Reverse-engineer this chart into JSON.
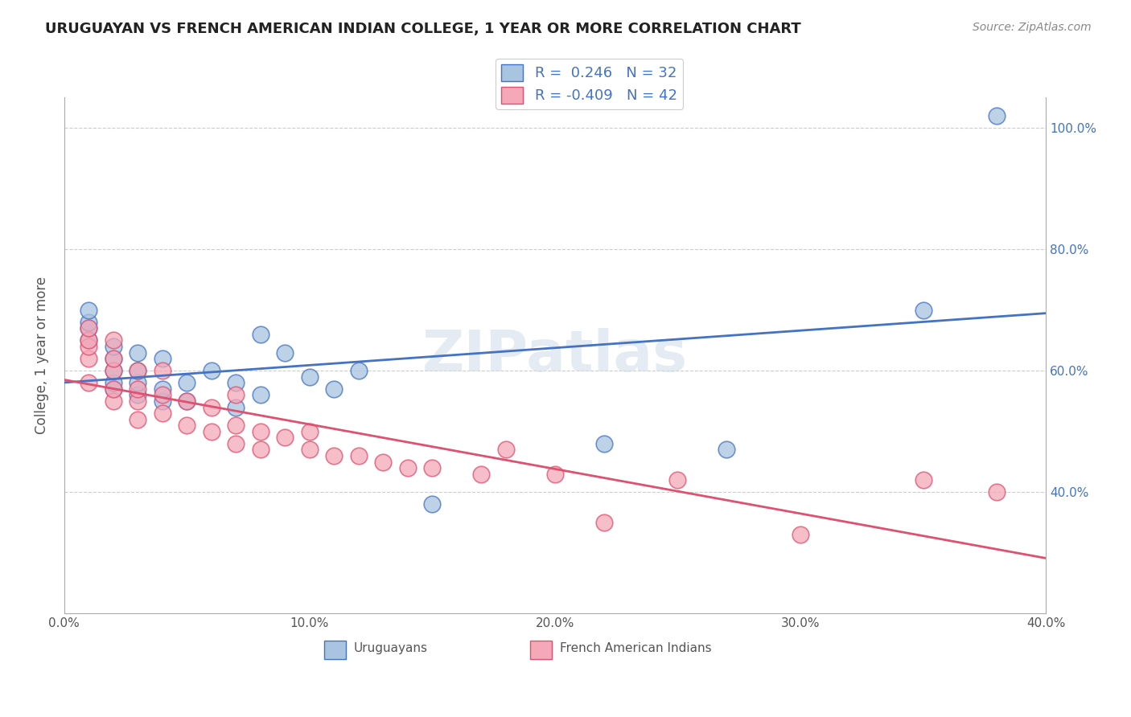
{
  "title": "URUGUAYAN VS FRENCH AMERICAN INDIAN COLLEGE, 1 YEAR OR MORE CORRELATION CHART",
  "source": "Source: ZipAtlas.com",
  "ylabel": "College, 1 year or more",
  "legend_label1": "Uruguayans",
  "legend_label2": "French American Indians",
  "r1": 0.246,
  "n1": 32,
  "r2": -0.409,
  "n2": 42,
  "xmin": 0.0,
  "xmax": 0.4,
  "ymin": 0.2,
  "ymax": 1.05,
  "color_blue": "#a8c4e0",
  "color_pink": "#f4a8b8",
  "line_blue": "#4472c4",
  "line_pink": "#e05070",
  "xtick_labels": [
    "0.0%",
    "10.0%",
    "20.0%",
    "30.0%",
    "40.0%"
  ],
  "xtick_vals": [
    0.0,
    0.1,
    0.2,
    0.3,
    0.4
  ],
  "ytick_labels": [
    "40.0%",
    "60.0%",
    "80.0%",
    "100.0%"
  ],
  "ytick_vals": [
    0.4,
    0.6,
    0.8,
    1.0
  ],
  "blue_x": [
    0.01,
    0.01,
    0.01,
    0.01,
    0.02,
    0.02,
    0.02,
    0.02,
    0.02,
    0.03,
    0.03,
    0.03,
    0.03,
    0.04,
    0.04,
    0.04,
    0.05,
    0.05,
    0.06,
    0.07,
    0.07,
    0.08,
    0.08,
    0.09,
    0.1,
    0.11,
    0.12,
    0.15,
    0.22,
    0.27,
    0.35,
    0.38
  ],
  "blue_y": [
    0.65,
    0.67,
    0.68,
    0.7,
    0.57,
    0.58,
    0.6,
    0.62,
    0.64,
    0.56,
    0.58,
    0.6,
    0.63,
    0.55,
    0.57,
    0.62,
    0.55,
    0.58,
    0.6,
    0.54,
    0.58,
    0.56,
    0.66,
    0.63,
    0.59,
    0.57,
    0.6,
    0.38,
    0.48,
    0.47,
    0.7,
    1.02
  ],
  "pink_x": [
    0.01,
    0.01,
    0.01,
    0.01,
    0.01,
    0.02,
    0.02,
    0.02,
    0.02,
    0.02,
    0.03,
    0.03,
    0.03,
    0.03,
    0.04,
    0.04,
    0.04,
    0.05,
    0.05,
    0.06,
    0.06,
    0.07,
    0.07,
    0.07,
    0.08,
    0.08,
    0.09,
    0.1,
    0.1,
    0.11,
    0.12,
    0.13,
    0.14,
    0.15,
    0.17,
    0.18,
    0.2,
    0.22,
    0.25,
    0.3,
    0.35,
    0.38
  ],
  "pink_y": [
    0.58,
    0.62,
    0.64,
    0.65,
    0.67,
    0.55,
    0.57,
    0.6,
    0.62,
    0.65,
    0.52,
    0.55,
    0.57,
    0.6,
    0.53,
    0.56,
    0.6,
    0.51,
    0.55,
    0.5,
    0.54,
    0.48,
    0.51,
    0.56,
    0.47,
    0.5,
    0.49,
    0.47,
    0.5,
    0.46,
    0.46,
    0.45,
    0.44,
    0.44,
    0.43,
    0.47,
    0.43,
    0.35,
    0.42,
    0.33,
    0.42,
    0.4
  ]
}
